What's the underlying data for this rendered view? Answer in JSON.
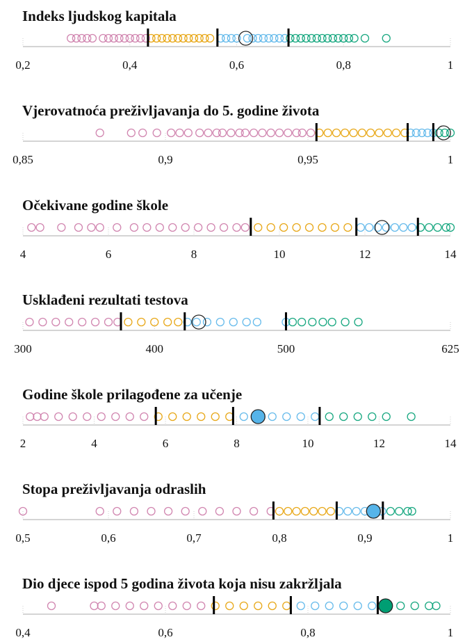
{
  "chart_data": [
    {
      "type": "strip",
      "title": "Indeks ljudskog kapitala",
      "xlim": [
        0.2,
        1
      ],
      "xticks": [
        {
          "value": 0.2,
          "label": "0,2"
        },
        {
          "value": 0.4,
          "label": "0,4"
        },
        {
          "value": 0.6,
          "label": "0,6"
        },
        {
          "value": 0.8,
          "label": "0,8"
        },
        1
      ],
      "thresholds": [
        0.434,
        0.564,
        0.697
      ],
      "highlight": 0.617,
      "highlight_filled": false,
      "colors": [
        "#cc79a7",
        "#e69f00",
        "#56b4e9",
        "#009e73"
      ],
      "values": [
        0.29,
        0.3,
        0.31,
        0.32,
        0.33,
        0.35,
        0.36,
        0.37,
        0.38,
        0.39,
        0.4,
        0.41,
        0.42,
        0.43,
        0.44,
        0.45,
        0.46,
        0.47,
        0.48,
        0.49,
        0.5,
        0.51,
        0.52,
        0.53,
        0.54,
        0.55,
        0.57,
        0.58,
        0.59,
        0.6,
        0.62,
        0.63,
        0.64,
        0.65,
        0.66,
        0.67,
        0.68,
        0.69,
        0.7,
        0.71,
        0.72,
        0.73,
        0.74,
        0.75,
        0.76,
        0.77,
        0.78,
        0.79,
        0.8,
        0.81,
        0.82,
        0.84,
        0.88
      ]
    },
    {
      "type": "strip",
      "title": "Vjerovatnoća preživljavanja do 5. godine života",
      "xlim": [
        0.85,
        1
      ],
      "xticks": [
        {
          "value": 0.85,
          "label": "0,85"
        },
        {
          "value": 0.9,
          "label": "0,9"
        },
        {
          "value": 0.95,
          "label": "0,95"
        },
        1
      ],
      "thresholds": [
        0.953,
        0.985,
        0.994
      ],
      "highlight": 0.9976,
      "highlight_filled": false,
      "colors": [
        "#cc79a7",
        "#e69f00",
        "#56b4e9",
        "#009e73"
      ],
      "values": [
        0.877,
        0.888,
        0.892,
        0.897,
        0.902,
        0.905,
        0.908,
        0.912,
        0.915,
        0.918,
        0.92,
        0.923,
        0.926,
        0.928,
        0.931,
        0.934,
        0.937,
        0.94,
        0.943,
        0.946,
        0.948,
        0.951,
        0.954,
        0.957,
        0.96,
        0.963,
        0.966,
        0.969,
        0.972,
        0.975,
        0.978,
        0.981,
        0.984,
        0.986,
        0.988,
        0.99,
        0.992,
        0.994,
        0.996,
        0.998,
        1
      ]
    },
    {
      "type": "strip",
      "title": "Očekivane godine škole",
      "xlim": [
        4,
        14
      ],
      "xticks": [
        4,
        6,
        8,
        10,
        12,
        14
      ],
      "thresholds": [
        9.33,
        11.8,
        13.24
      ],
      "highlight": 12.4,
      "highlight_filled": false,
      "colors": [
        "#cc79a7",
        "#e69f00",
        "#56b4e9",
        "#009e73"
      ],
      "values": [
        4.2,
        4.4,
        4.9,
        5.3,
        5.6,
        5.8,
        6.2,
        6.6,
        6.9,
        7.2,
        7.5,
        7.8,
        8.1,
        8.4,
        8.7,
        9.0,
        9.2,
        9.5,
        9.8,
        10.1,
        10.4,
        10.7,
        11.0,
        11.3,
        11.6,
        11.9,
        12.1,
        12.3,
        12.5,
        12.7,
        12.9,
        13.1,
        13.3,
        13.5,
        13.7,
        13.9,
        14
      ]
    },
    {
      "type": "strip",
      "title": "Usklađeni rezultati testova",
      "xlim": [
        300,
        625
      ],
      "xticks": [
        300,
        400,
        500,
        625
      ],
      "thresholds": [
        374.5,
        423,
        500
      ],
      "highlight": 433.7,
      "highlight_filled": false,
      "colors": [
        "#cc79a7",
        "#e69f00",
        "#56b4e9",
        "#009e73"
      ],
      "values": [
        305,
        315,
        325,
        335,
        345,
        355,
        365,
        372,
        380,
        390,
        400,
        410,
        418,
        425,
        432,
        440,
        450,
        460,
        470,
        478,
        500,
        505,
        512,
        520,
        528,
        535,
        545,
        555
      ]
    },
    {
      "type": "strip",
      "title": "Godine škole prilagođene za učenje",
      "xlim": [
        2,
        14
      ],
      "xticks": [
        2,
        4,
        6,
        8,
        10,
        12,
        14
      ],
      "thresholds": [
        5.73,
        7.9,
        10.33
      ],
      "highlight": 8.6,
      "highlight_filled": true,
      "colors": [
        "#cc79a7",
        "#e69f00",
        "#56b4e9",
        "#009e73"
      ],
      "values": [
        2.2,
        2.4,
        2.6,
        3.0,
        3.4,
        3.8,
        4.2,
        4.6,
        5.0,
        5.4,
        5.8,
        6.2,
        6.6,
        7.0,
        7.4,
        7.8,
        8.2,
        8.6,
        9.0,
        9.4,
        9.8,
        10.2,
        10.6,
        11.0,
        11.4,
        11.8,
        12.2,
        12.9
      ]
    },
    {
      "type": "strip",
      "title": "Stopa preživljavanja odraslih",
      "xlim": [
        0.5,
        1
      ],
      "xticks": [
        {
          "value": 0.5,
          "label": "0,5"
        },
        {
          "value": 0.6,
          "label": "0,6"
        },
        {
          "value": 0.7,
          "label": "0,7"
        },
        {
          "value": 0.8,
          "label": "0,8"
        },
        {
          "value": 0.9,
          "label": "0,9"
        },
        1
      ],
      "thresholds": [
        0.793,
        0.867,
        0.921
      ],
      "highlight": 0.91,
      "highlight_filled": true,
      "colors": [
        "#cc79a7",
        "#e69f00",
        "#56b4e9",
        "#009e73"
      ],
      "values": [
        0.5,
        0.59,
        0.61,
        0.63,
        0.65,
        0.67,
        0.69,
        0.71,
        0.73,
        0.75,
        0.77,
        0.79,
        0.8,
        0.81,
        0.82,
        0.83,
        0.84,
        0.85,
        0.86,
        0.87,
        0.88,
        0.89,
        0.9,
        0.91,
        0.92,
        0.93,
        0.94,
        0.95,
        0.955
      ]
    },
    {
      "type": "strip",
      "title": "Dio djece ispod 5 godina života koja nisu zakržljala",
      "xlim": [
        0.4,
        1
      ],
      "xticks": [
        {
          "value": 0.4,
          "label": "0,4"
        },
        {
          "value": 0.6,
          "label": "0,6"
        },
        {
          "value": 0.8,
          "label": "0,8"
        },
        1
      ],
      "thresholds": [
        0.668,
        0.776,
        0.898
      ],
      "highlight": 0.909,
      "highlight_filled": true,
      "colors": [
        "#cc79a7",
        "#e69f00",
        "#56b4e9",
        "#009e73"
      ],
      "values": [
        0.44,
        0.5,
        0.51,
        0.53,
        0.55,
        0.57,
        0.59,
        0.61,
        0.63,
        0.65,
        0.67,
        0.69,
        0.71,
        0.73,
        0.75,
        0.77,
        0.79,
        0.81,
        0.83,
        0.85,
        0.87,
        0.89,
        0.91,
        0.93,
        0.95,
        0.97,
        0.98
      ]
    }
  ]
}
